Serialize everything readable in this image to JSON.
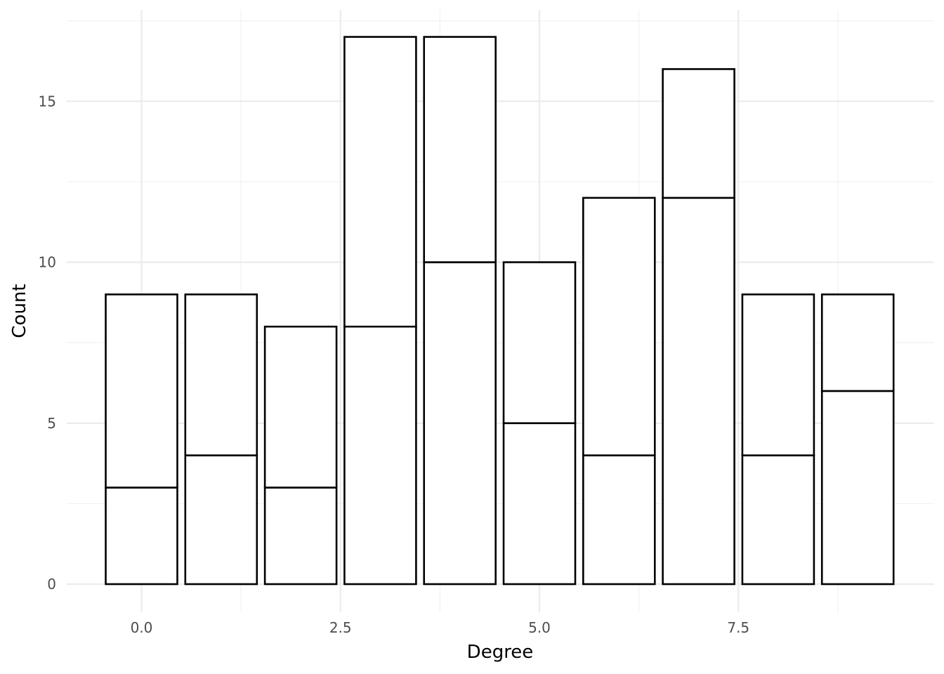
{
  "chart_data": {
    "type": "bar",
    "stacked": true,
    "x": [
      0,
      1,
      2,
      3,
      4,
      5,
      6,
      7,
      8,
      9
    ],
    "series": [
      {
        "values": [
          3,
          4,
          3,
          8,
          10,
          5,
          4,
          12,
          4,
          6
        ]
      },
      {
        "values": [
          6,
          5,
          5,
          9,
          7,
          5,
          8,
          4,
          5,
          3
        ]
      }
    ],
    "totals": [
      9,
      9,
      8,
      17,
      17,
      10,
      12,
      16,
      9,
      9
    ],
    "xlabel": "Degree",
    "ylabel": "Count",
    "xlim": [
      -0.5,
      9.5
    ],
    "ylim": [
      0,
      17
    ],
    "x_ticks": [
      0,
      2.5,
      5,
      7.5
    ],
    "x_tick_labels": [
      "0.0",
      "2.5",
      "5.0",
      "7.5"
    ],
    "y_ticks": [
      0,
      5,
      10,
      15
    ],
    "y_tick_labels": [
      "0",
      "5",
      "10",
      "15"
    ],
    "grid": true,
    "legend": "none",
    "colors": {
      "fill": "#ffffff",
      "outline": "#000000",
      "grid": "#ebebeb",
      "tick_text": "#4d4d4d"
    }
  }
}
